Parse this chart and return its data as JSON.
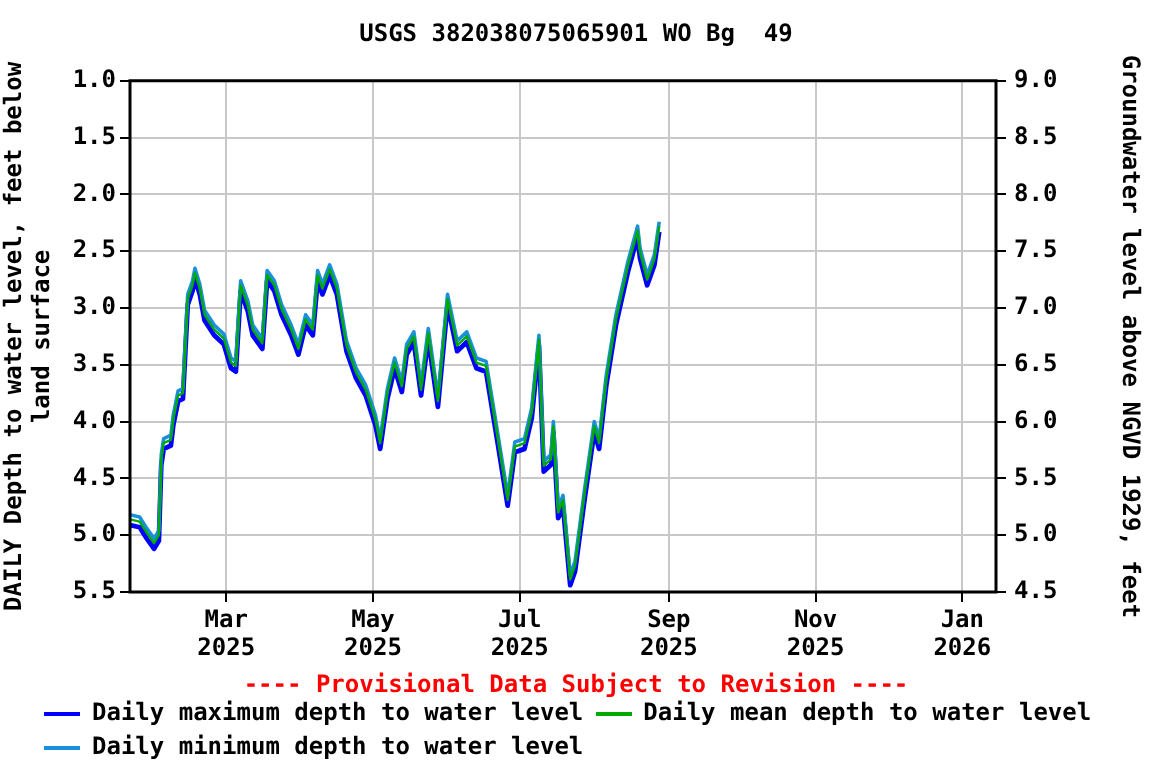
{
  "chart_data": {
    "type": "line",
    "title": "USGS 382038075065901 WO Bg  49",
    "ylabel": "DAILY Depth to water level, feet below land surface",
    "y2label": "Groundwater level above NGVD 1929, feet",
    "x": [
      "2025-01-20",
      "2025-01-24",
      "2025-01-27",
      "2025-01-30",
      "2025-02-01",
      "2025-02-02",
      "2025-02-03",
      "2025-02-06",
      "2025-02-07",
      "2025-02-09",
      "2025-02-11",
      "2025-02-13",
      "2025-02-15",
      "2025-02-16",
      "2025-02-18",
      "2025-02-20",
      "2025-02-24",
      "2025-02-28",
      "2025-03-03",
      "2025-03-05",
      "2025-03-07",
      "2025-03-10",
      "2025-03-12",
      "2025-03-16",
      "2025-03-18",
      "2025-03-21",
      "2025-03-24",
      "2025-03-28",
      "2025-03-31",
      "2025-04-03",
      "2025-04-06",
      "2025-04-08",
      "2025-04-10",
      "2025-04-13",
      "2025-04-16",
      "2025-04-20",
      "2025-04-24",
      "2025-04-28",
      "2025-05-02",
      "2025-05-04",
      "2025-05-07",
      "2025-05-10",
      "2025-05-13",
      "2025-05-15",
      "2025-05-18",
      "2025-05-21",
      "2025-05-24",
      "2025-05-28",
      "2025-06-01",
      "2025-06-05",
      "2025-06-09",
      "2025-06-13",
      "2025-06-17",
      "2025-06-22",
      "2025-06-26",
      "2025-06-29",
      "2025-07-03",
      "2025-07-06",
      "2025-07-09",
      "2025-07-11",
      "2025-07-14",
      "2025-07-15",
      "2025-07-17",
      "2025-07-19",
      "2025-07-22",
      "2025-07-24",
      "2025-07-28",
      "2025-08-01",
      "2025-08-03",
      "2025-08-06",
      "2025-08-10",
      "2025-08-15",
      "2025-08-19",
      "2025-08-20",
      "2025-08-23",
      "2025-08-26",
      "2025-08-28"
    ],
    "series": [
      {
        "name": "Daily maximum depth to water level",
        "color": "#0000ff",
        "values": [
          4.91,
          4.93,
          5.03,
          5.12,
          5.05,
          4.38,
          4.24,
          4.21,
          4.03,
          3.82,
          3.8,
          2.97,
          2.85,
          2.74,
          2.88,
          3.11,
          3.24,
          3.32,
          3.53,
          3.56,
          2.85,
          3.03,
          3.24,
          3.36,
          2.76,
          2.85,
          3.06,
          3.24,
          3.41,
          3.15,
          3.24,
          2.76,
          2.88,
          2.71,
          2.88,
          3.38,
          3.62,
          3.77,
          4.03,
          4.24,
          3.8,
          3.53,
          3.74,
          3.41,
          3.3,
          3.77,
          3.27,
          3.87,
          2.97,
          3.38,
          3.3,
          3.53,
          3.56,
          4.21,
          4.74,
          4.27,
          4.24,
          3.97,
          3.33,
          4.44,
          4.38,
          4.09,
          4.85,
          4.74,
          5.44,
          5.32,
          4.68,
          4.09,
          4.24,
          3.68,
          3.15,
          2.68,
          2.37,
          2.56,
          2.8,
          2.62,
          2.33
        ]
      },
      {
        "name": "Daily mean depth to water level",
        "color": "#00aa00",
        "values": [
          4.86,
          4.88,
          4.98,
          5.07,
          5.0,
          4.33,
          4.19,
          4.16,
          3.98,
          3.77,
          3.75,
          2.92,
          2.8,
          2.69,
          2.83,
          3.06,
          3.19,
          3.27,
          3.48,
          3.51,
          2.8,
          2.98,
          3.19,
          3.31,
          2.71,
          2.8,
          3.01,
          3.19,
          3.36,
          3.1,
          3.19,
          2.71,
          2.83,
          2.66,
          2.83,
          3.33,
          3.57,
          3.72,
          3.98,
          4.19,
          3.75,
          3.48,
          3.69,
          3.36,
          3.25,
          3.72,
          3.22,
          3.82,
          2.92,
          3.33,
          3.25,
          3.48,
          3.51,
          4.16,
          4.69,
          4.22,
          4.19,
          3.92,
          3.28,
          4.39,
          4.33,
          4.04,
          4.8,
          4.69,
          5.39,
          5.27,
          4.63,
          4.04,
          4.19,
          3.63,
          3.1,
          2.63,
          2.32,
          2.51,
          2.75,
          2.57,
          2.28
        ]
      },
      {
        "name": "Daily minimum depth to water level",
        "color": "#1a8fdb",
        "values": [
          4.82,
          4.84,
          4.94,
          5.03,
          4.96,
          4.29,
          4.15,
          4.12,
          3.94,
          3.73,
          3.71,
          2.88,
          2.76,
          2.65,
          2.79,
          3.02,
          3.15,
          3.23,
          3.44,
          3.47,
          2.76,
          2.94,
          3.15,
          3.27,
          2.67,
          2.76,
          2.97,
          3.15,
          3.32,
          3.06,
          3.15,
          2.67,
          2.79,
          2.62,
          2.79,
          3.29,
          3.53,
          3.68,
          3.94,
          4.15,
          3.71,
          3.44,
          3.65,
          3.32,
          3.21,
          3.68,
          3.18,
          3.78,
          2.88,
          3.29,
          3.21,
          3.44,
          3.47,
          4.12,
          4.65,
          4.18,
          4.15,
          3.88,
          3.24,
          4.35,
          4.29,
          4.0,
          4.76,
          4.65,
          5.35,
          5.23,
          4.59,
          4.0,
          4.15,
          3.59,
          3.06,
          2.59,
          2.28,
          2.47,
          2.71,
          2.53,
          2.24
        ]
      }
    ],
    "xlim": [
      "2025-01-20",
      "2026-01-15"
    ],
    "xticks": [
      {
        "value": "2025-03-01",
        "label": "Mar\n2025"
      },
      {
        "value": "2025-05-01",
        "label": "May\n2025"
      },
      {
        "value": "2025-07-01",
        "label": "Jul\n2025"
      },
      {
        "value": "2025-09-01",
        "label": "Sep\n2025"
      },
      {
        "value": "2025-11-01",
        "label": "Nov\n2025"
      },
      {
        "value": "2026-01-01",
        "label": "Jan\n2026"
      }
    ],
    "ylim": [
      5.5,
      1.0
    ],
    "yticks": [
      {
        "value": 1.0,
        "label": "1.0"
      },
      {
        "value": 1.5,
        "label": "1.5"
      },
      {
        "value": 2.0,
        "label": "2.0"
      },
      {
        "value": 2.5,
        "label": "2.5"
      },
      {
        "value": 3.0,
        "label": "3.0"
      },
      {
        "value": 3.5,
        "label": "3.5"
      },
      {
        "value": 4.0,
        "label": "4.0"
      },
      {
        "value": 4.5,
        "label": "4.5"
      },
      {
        "value": 5.0,
        "label": "5.0"
      },
      {
        "value": 5.5,
        "label": "5.5"
      }
    ],
    "y2lim": [
      4.5,
      9.0
    ],
    "y2ticks": [
      {
        "value": 4.5,
        "label": "4.5"
      },
      {
        "value": 5.0,
        "label": "5.0"
      },
      {
        "value": 5.5,
        "label": "5.5"
      },
      {
        "value": 6.0,
        "label": "6.0"
      },
      {
        "value": 6.5,
        "label": "6.5"
      },
      {
        "value": 7.0,
        "label": "7.0"
      },
      {
        "value": 7.5,
        "label": "7.5"
      },
      {
        "value": 8.0,
        "label": "8.0"
      },
      {
        "value": 8.5,
        "label": "8.5"
      },
      {
        "value": 9.0,
        "label": "9.0"
      }
    ],
    "annotations": [
      "---- Provisional Data Subject to Revision ----"
    ],
    "grid": true,
    "legend": "bottom",
    "marker": "none",
    "line_style": "solid"
  }
}
